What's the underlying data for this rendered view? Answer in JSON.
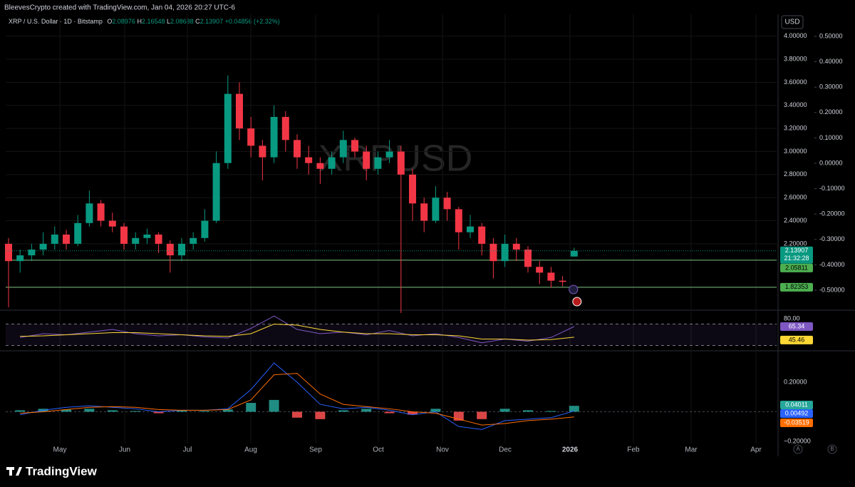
{
  "header": {
    "attribution": "BleevesCrypto created with TradingView.com, Jan 04, 2026 20:27 UTC-6",
    "symbol": "XRP / U.S. Dollar · 1D · Bitstamp",
    "o_label": "O",
    "h_label": "H",
    "l_label": "L",
    "c_label": "C",
    "change": "+0.04856",
    "change_pct": "(+2.32%)"
  },
  "footer": {
    "logo": "TradingView",
    "button_a": "A",
    "button_b": "B"
  },
  "time_axis": [
    "May",
    "Jun",
    "Jul",
    "Aug",
    "Sep",
    "Oct",
    "Nov",
    "Dec",
    "2026",
    "Feb",
    "Mar",
    "Apr"
  ],
  "chart_data": [
    {
      "type": "candlestick",
      "watermark": "XRPUSD",
      "currency": "USD",
      "countdown": "21:32:28",
      "up_color": "#089981",
      "down_color": "#f23645",
      "level_color": "#81c784",
      "candles": [
        [
          2.2,
          2.25,
          1.65,
          2.05
        ],
        [
          2.05,
          2.15,
          1.95,
          2.1
        ],
        [
          2.1,
          2.2,
          2.05,
          2.15
        ],
        [
          2.15,
          2.3,
          2.1,
          2.2
        ],
        [
          2.2,
          2.35,
          2.15,
          2.28
        ],
        [
          2.28,
          2.32,
          2.15,
          2.2
        ],
        [
          2.2,
          2.45,
          2.18,
          2.38
        ],
        [
          2.38,
          2.66,
          2.35,
          2.55
        ],
        [
          2.55,
          2.58,
          2.35,
          2.4
        ],
        [
          2.4,
          2.47,
          2.3,
          2.35
        ],
        [
          2.35,
          2.38,
          2.15,
          2.2
        ],
        [
          2.2,
          2.3,
          2.15,
          2.25
        ],
        [
          2.25,
          2.33,
          2.2,
          2.28
        ],
        [
          2.28,
          2.3,
          2.12,
          2.2
        ],
        [
          2.2,
          2.23,
          1.95,
          2.1
        ],
        [
          2.1,
          2.25,
          2.05,
          2.2
        ],
        [
          2.2,
          2.3,
          2.15,
          2.25
        ],
        [
          2.25,
          2.5,
          2.22,
          2.4
        ],
        [
          2.4,
          3.0,
          2.38,
          2.9
        ],
        [
          2.9,
          3.66,
          2.85,
          3.5
        ],
        [
          3.5,
          3.6,
          3.1,
          3.2
        ],
        [
          3.2,
          3.3,
          2.95,
          3.05
        ],
        [
          3.05,
          3.1,
          2.75,
          2.95
        ],
        [
          2.95,
          3.4,
          2.9,
          3.3
        ],
        [
          3.3,
          3.35,
          3.0,
          3.1
        ],
        [
          3.1,
          3.15,
          2.85,
          2.95
        ],
        [
          2.95,
          3.05,
          2.8,
          2.9
        ],
        [
          2.9,
          2.95,
          2.72,
          2.85
        ],
        [
          2.85,
          3.0,
          2.8,
          2.95
        ],
        [
          2.95,
          3.18,
          2.9,
          3.1
        ],
        [
          3.1,
          3.12,
          2.95,
          3.0
        ],
        [
          3.0,
          3.05,
          2.75,
          2.85
        ],
        [
          2.85,
          3.0,
          2.8,
          2.95
        ],
        [
          2.95,
          3.1,
          2.9,
          3.0
        ],
        [
          3.0,
          3.05,
          1.6,
          2.8
        ],
        [
          2.8,
          2.85,
          2.4,
          2.55
        ],
        [
          2.55,
          2.6,
          2.3,
          2.4
        ],
        [
          2.4,
          2.7,
          2.38,
          2.6
        ],
        [
          2.6,
          2.65,
          2.4,
          2.5
        ],
        [
          2.5,
          2.52,
          2.15,
          2.3
        ],
        [
          2.3,
          2.45,
          2.25,
          2.35
        ],
        [
          2.35,
          2.38,
          2.1,
          2.2
        ],
        [
          2.2,
          2.25,
          1.9,
          2.05
        ],
        [
          2.05,
          2.28,
          2.0,
          2.2
        ],
        [
          2.2,
          2.25,
          2.05,
          2.15
        ],
        [
          2.15,
          2.18,
          1.95,
          2.0
        ],
        [
          2.0,
          2.05,
          1.85,
          1.95
        ],
        [
          1.95,
          2.0,
          1.82,
          1.88
        ],
        [
          1.88,
          1.92,
          1.83,
          1.87
        ],
        [
          2.08976,
          2.16548,
          2.08688,
          2.13907
        ]
      ],
      "levels": [
        2.05811,
        1.82353
      ],
      "ylim": [
        1.637,
        4.19
      ],
      "yticks": [
        {
          "value": 2.2,
          "label": "2.20000"
        },
        {
          "value": 2.4,
          "label": "2.40000"
        },
        {
          "value": 2.6,
          "label": "2.60000"
        },
        {
          "value": 2.8,
          "label": "2.80000"
        },
        {
          "value": 3.0,
          "label": "3.00000"
        },
        {
          "value": 3.2,
          "label": "3.20000"
        },
        {
          "value": 3.4,
          "label": "3.40000"
        },
        {
          "value": 3.6,
          "label": "3.60000"
        },
        {
          "value": 3.8,
          "label": "3.80000"
        },
        {
          "value": 4.0,
          "label": "4.00000"
        }
      ],
      "y2lim": [
        -0.573,
        0.587
      ],
      "y2ticks": [
        {
          "value": 0.5,
          "label": "0.50000"
        },
        {
          "value": 0.4,
          "label": "0.40000"
        },
        {
          "value": 0.3,
          "label": "0.30000"
        },
        {
          "value": 0.2,
          "label": "0.20000"
        },
        {
          "value": 0.1,
          "label": "0.10000"
        },
        {
          "value": 0,
          "label": "0.00000"
        },
        {
          "value": -0.1,
          "label": "-0.10000"
        },
        {
          "value": -0.2,
          "label": "-0.20000"
        },
        {
          "value": -0.3,
          "label": "-0.30000"
        },
        {
          "value": -0.4,
          "label": "-0.40000"
        },
        {
          "value": -0.5,
          "label": "-0.50000"
        }
      ],
      "grid": true
    },
    {
      "type": "line",
      "ylim": [
        22.7,
        92
      ],
      "yticks": [
        {
          "value": 80,
          "label": "80.00"
        }
      ],
      "bands": [
        70,
        30
      ],
      "band_color": "#7e57c2",
      "series": [
        {
          "color": "#7e57c2",
          "values": [
            45,
            52,
            50,
            55,
            60,
            52,
            48,
            50,
            46,
            44,
            62,
            85,
            60,
            52,
            55,
            50,
            58,
            48,
            52,
            45,
            35,
            42,
            38,
            45,
            65.34
          ]
        },
        {
          "color": "#fdd835",
          "values": [
            47,
            48,
            50,
            52,
            54,
            54,
            52,
            50,
            48,
            47,
            52,
            70,
            68,
            60,
            55,
            52,
            52,
            50,
            50,
            48,
            42,
            42,
            40,
            41,
            45.46
          ]
        }
      ]
    },
    {
      "type": "macd",
      "ylim": [
        -0.215,
        0.398
      ],
      "yticks": [
        {
          "value": 0.2,
          "label": "0.20000"
        },
        {
          "value": -0.2,
          "label": "−0.20000"
        }
      ],
      "histogram": {
        "up_color": "#26a69a",
        "down_color": "#ff5252",
        "values": [
          0.01,
          0.02,
          0.015,
          0.02,
          0.01,
          0.005,
          -0.01,
          0.01,
          0.005,
          0.015,
          0.06,
          0.08,
          -0.04,
          -0.05,
          0.01,
          0.02,
          -0.01,
          -0.02,
          0.02,
          -0.06,
          -0.05,
          0.02,
          0.01,
          0.005,
          0.04011
        ]
      },
      "series": [
        {
          "color": "#2962ff",
          "values": [
            -0.02,
            0.01,
            0.03,
            0.04,
            0.03,
            0.02,
            0,
            0.01,
            0.01,
            0.02,
            0.15,
            0.33,
            0.2,
            0.05,
            0.02,
            0.03,
            0.01,
            -0.02,
            0,
            -0.1,
            -0.12,
            -0.06,
            -0.05,
            -0.04,
            0.00492
          ]
        },
        {
          "color": "#ff6d00",
          "values": [
            -0.01,
            0,
            0.015,
            0.03,
            0.035,
            0.03,
            0.015,
            0.01,
            0.01,
            0.015,
            0.08,
            0.25,
            0.26,
            0.12,
            0.05,
            0.035,
            0.02,
            0,
            -0.01,
            -0.05,
            -0.09,
            -0.08,
            -0.06,
            -0.05,
            -0.03519
          ]
        }
      ]
    }
  ]
}
